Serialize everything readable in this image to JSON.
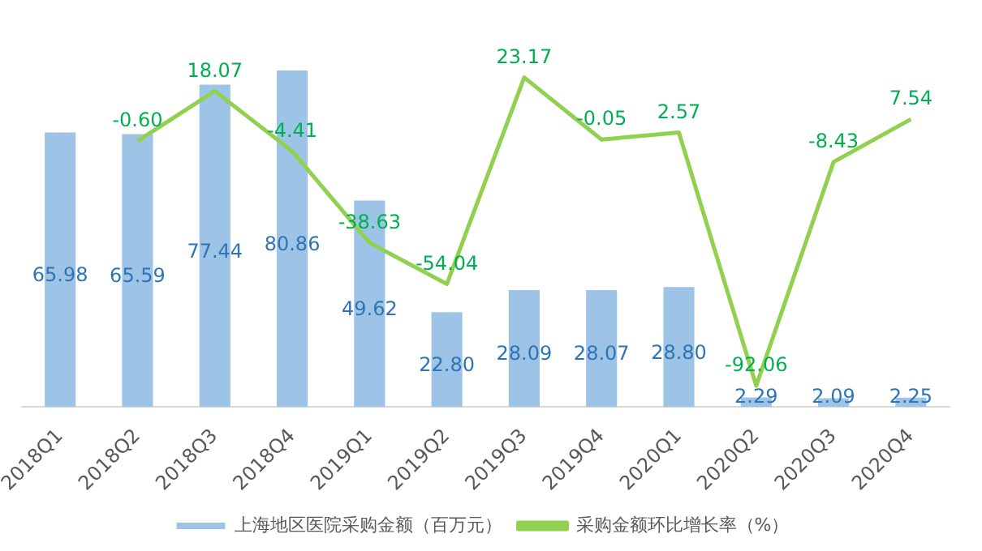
{
  "chart_data": {
    "type": "bar",
    "categories": [
      "2018Q1",
      "2018Q2",
      "2018Q3",
      "2018Q4",
      "2019Q1",
      "2019Q2",
      "2019Q3",
      "2019Q4",
      "2020Q1",
      "2020Q2",
      "2020Q3",
      "2020Q4"
    ],
    "series": [
      {
        "name": "上海地区医院采购金额（百万元）",
        "color": "#9dc3e6",
        "values": [
          65.98,
          65.59,
          77.44,
          80.86,
          49.62,
          22.8,
          28.09,
          28.07,
          28.8,
          2.29,
          2.09,
          2.25
        ],
        "value_labels": [
          "65.98",
          "65.59",
          "77.44",
          "80.86",
          "49.62",
          "22.80",
          "28.09",
          "28.07",
          "28.80",
          "2.29",
          "2.09",
          "2.25"
        ]
      },
      {
        "type": "line",
        "name": "采购金额环比增长率（%）",
        "color": "#92d050",
        "axis": "y2",
        "values": [
          null,
          -0.6,
          18.07,
          -4.41,
          -38.63,
          -54.04,
          23.17,
          -0.05,
          2.57,
          -92.06,
          -8.43,
          7.54
        ],
        "value_labels": [
          null,
          "-0.60",
          "18.07",
          "-4.41",
          "-38.63",
          "-54.04",
          "23.17",
          "-0.05",
          "2.57",
          "-92.06",
          "-8.43",
          "7.54"
        ]
      }
    ],
    "legend": "bottom",
    "grid": false,
    "tick_labels": "x",
    "marker": "none"
  }
}
